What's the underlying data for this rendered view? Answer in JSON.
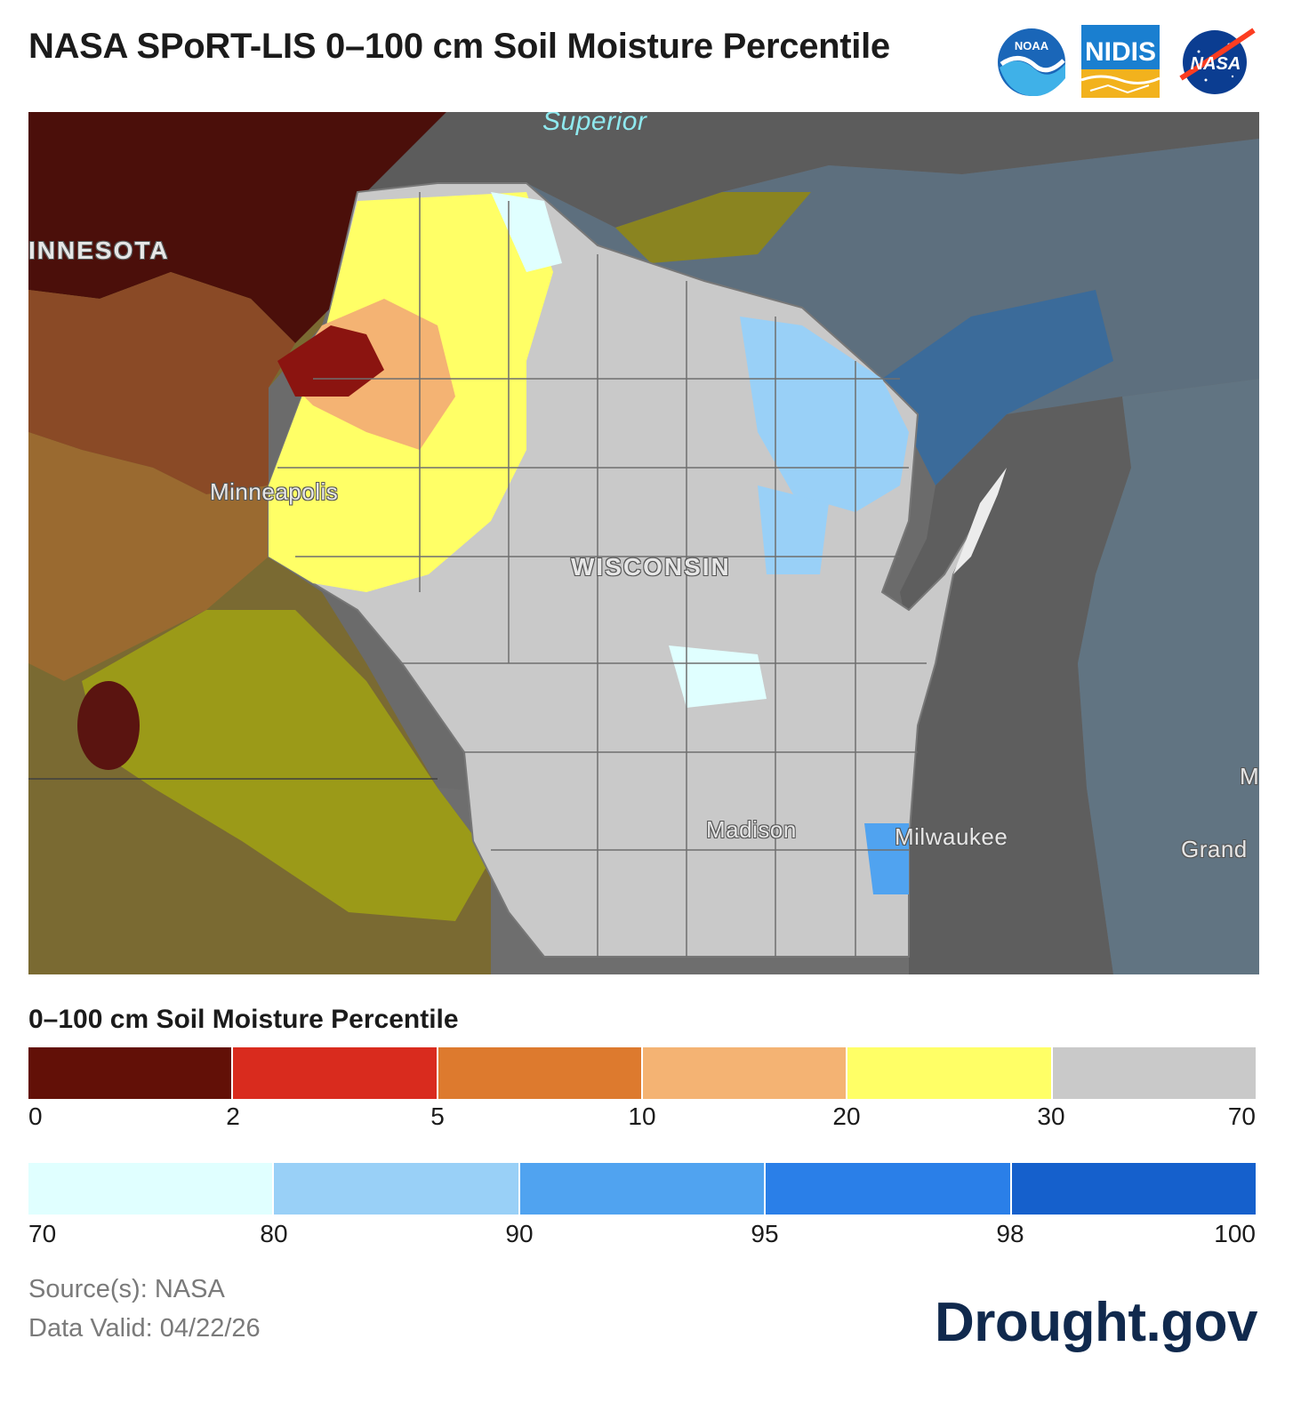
{
  "title": "NASA SPoRT-LIS 0–100 cm Soil Moisture Percentile",
  "logos": [
    {
      "icon": "noaa-logo",
      "text": "NOAA"
    },
    {
      "icon": "nidis-logo",
      "text": "NIDIS"
    },
    {
      "icon": "nasa-logo",
      "text": "NASA"
    }
  ],
  "map": {
    "labels": {
      "minnesota": "INNESOTA",
      "superior": "Superior",
      "minneapolis": "Minneapolis",
      "wisconsin": "WISCONSIN",
      "madison": "Madison",
      "milwaukee": "Milwaukee",
      "grand": "Grand",
      "m": "M"
    }
  },
  "legend": {
    "title": "0–100 cm Soil Moisture Percentile",
    "dry": {
      "colors": [
        "#621007",
        "#d92b1e",
        "#dd7a2e",
        "#f4b373",
        "#ffff66",
        "#c9c9c9"
      ],
      "ticks": [
        "0",
        "2",
        "5",
        "10",
        "20",
        "30",
        "70"
      ]
    },
    "wet": {
      "colors": [
        "#e0ffff",
        "#99d0f7",
        "#50a3f0",
        "#2a7fe8",
        "#1560cc"
      ],
      "ticks": [
        "70",
        "80",
        "90",
        "95",
        "98",
        "100"
      ]
    }
  },
  "footer": {
    "source": "Source(s): NASA",
    "valid": "Data Valid: 04/22/26",
    "brand": "Drought.gov"
  }
}
